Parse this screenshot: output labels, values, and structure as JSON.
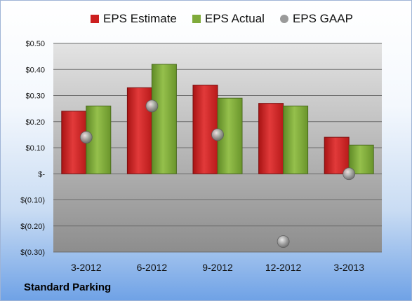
{
  "company": "Standard Parking",
  "chart_data": {
    "type": "bar",
    "categories": [
      "3-2012",
      "6-2012",
      "9-2012",
      "12-2012",
      "3-2013"
    ],
    "series": [
      {
        "name": "EPS Estimate",
        "type": "bar",
        "color": "#cc1f1f",
        "values": [
          0.24,
          0.33,
          0.34,
          0.27,
          0.14
        ]
      },
      {
        "name": "EPS Actual",
        "type": "bar",
        "color": "#7faa3a",
        "values": [
          0.26,
          0.42,
          0.29,
          0.26,
          0.11
        ]
      },
      {
        "name": "EPS GAAP",
        "type": "bubble",
        "color": "#9a9a9a",
        "values": [
          0.14,
          0.26,
          0.15,
          -0.26,
          0.0
        ]
      }
    ],
    "ylim": [
      -0.3,
      0.5
    ],
    "yticks": [
      0.5,
      0.4,
      0.3,
      0.2,
      0.1,
      0.0,
      -0.1,
      -0.2,
      -0.3
    ],
    "ytick_labels": [
      "$0.50",
      "$0.40",
      "$0.30",
      "$0.20",
      "$0.10",
      "$-",
      "$(0.10)",
      "$(0.20)",
      "$(0.30)"
    ],
    "grid": true,
    "legend_position": "top",
    "title": "",
    "xlabel": "",
    "ylabel": ""
  }
}
